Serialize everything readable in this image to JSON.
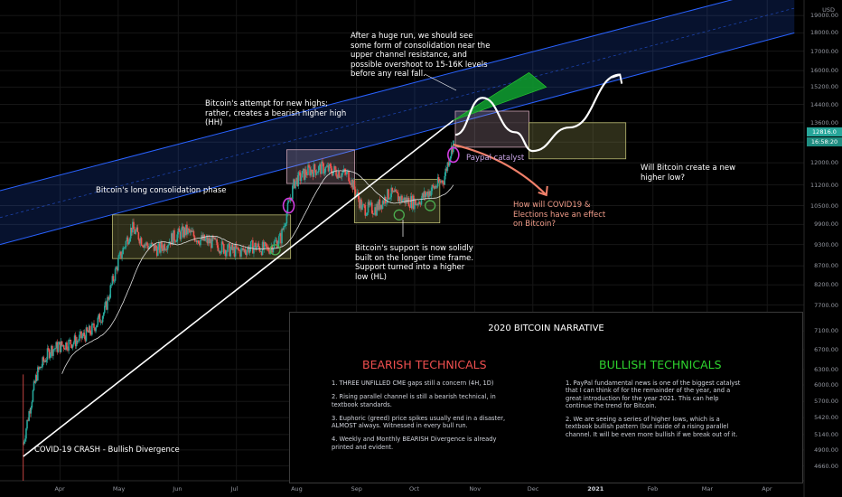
{
  "chart_data": {
    "type": "candlestick",
    "instrument": "Bitcoin",
    "currency": "USD",
    "x_ticks": [
      "Apr",
      "May",
      "Jun",
      "Jul",
      "Aug",
      "Sep",
      "Oct",
      "Nov",
      "Dec",
      "2021",
      "Feb",
      "Mar",
      "Apr"
    ],
    "y_ticks": [
      19000,
      18000,
      17000,
      16000,
      15200,
      14400,
      13600,
      12800,
      12000,
      11200,
      10500,
      9900,
      9300,
      8700,
      8200,
      7700,
      7100,
      6700,
      6300,
      6000,
      5700,
      5420,
      5140,
      4900,
      4660
    ],
    "ylim": [
      4450,
      19500
    ],
    "last_price": "12816.0",
    "countdown": "16:58:20",
    "price_path": [
      [
        "2020-03-13",
        5000
      ],
      [
        "2020-03-20",
        6200
      ],
      [
        "2020-03-27",
        6700
      ],
      [
        "2020-04-03",
        6800
      ],
      [
        "2020-04-10",
        6900
      ],
      [
        "2020-04-17",
        7100
      ],
      [
        "2020-04-24",
        7550
      ],
      [
        "2020-05-01",
        8800
      ],
      [
        "2020-05-08",
        9800
      ],
      [
        "2020-05-15",
        9300
      ],
      [
        "2020-05-22",
        9150
      ],
      [
        "2020-05-29",
        9500
      ],
      [
        "2020-06-05",
        9700
      ],
      [
        "2020-06-12",
        9450
      ],
      [
        "2020-06-19",
        9350
      ],
      [
        "2020-06-26",
        9150
      ],
      [
        "2020-07-03",
        9100
      ],
      [
        "2020-07-10",
        9250
      ],
      [
        "2020-07-17",
        9150
      ],
      [
        "2020-07-24",
        9500
      ],
      [
        "2020-07-31",
        11300
      ],
      [
        "2020-08-07",
        11700
      ],
      [
        "2020-08-14",
        11800
      ],
      [
        "2020-08-21",
        11700
      ],
      [
        "2020-08-28",
        11550
      ],
      [
        "2020-09-04",
        10400
      ],
      [
        "2020-09-11",
        10400
      ],
      [
        "2020-09-18",
        10900
      ],
      [
        "2020-09-25",
        10700
      ],
      [
        "2020-10-02",
        10600
      ],
      [
        "2020-10-09",
        11000
      ],
      [
        "2020-10-16",
        11400
      ],
      [
        "2020-10-21",
        12816
      ]
    ],
    "rising_channel": {
      "upper": [
        [
          "2020-03-01",
          11000
        ],
        [
          "2021-04-15",
          21000
        ]
      ],
      "lower": [
        [
          "2020-03-01",
          9300
        ],
        [
          "2021-04-15",
          18000
        ]
      ]
    },
    "support_trendline": [
      [
        "2020-03-13",
        4800
      ],
      [
        "2020-10-21",
        13700
      ]
    ],
    "consolidation_boxes": [
      {
        "from": "2020-04-28",
        "to": "2020-07-29",
        "low": 8900,
        "high": 10200
      },
      {
        "from": "2020-07-27",
        "to": "2020-08-31",
        "low": 11250,
        "high": 12500
      },
      {
        "from": "2020-08-31",
        "to": "2020-10-14",
        "low": 9950,
        "high": 11400
      },
      {
        "from": "2020-10-22",
        "to": "2020-11-29",
        "low": 12600,
        "high": 14100
      },
      {
        "from": "2020-11-29",
        "to": "2021-01-18",
        "low": 12150,
        "high": 13600
      }
    ],
    "projections": {
      "bullish": [
        [
          "2020-10-22",
          13100
        ],
        [
          "2020-11-05",
          14700
        ],
        [
          "2020-11-22",
          13200
        ],
        [
          "2020-12-01",
          12450
        ],
        [
          "2020-12-20",
          13400
        ],
        [
          "2021-01-15",
          15800
        ]
      ],
      "bearish": [
        [
          "2020-10-21",
          12700
        ],
        [
          "2020-11-19",
          11900
        ],
        [
          "2020-12-08",
          10850
        ]
      ]
    },
    "annotations": [
      "After a huge run, we should see some form of consolidation near the upper channel resistance, and possible overshoot to 15-16K levels before any real fall.",
      "Bitcoin's attempt for new highs; rather, creates a bearish higher high (HH)",
      "Bitcoin's long consolidation phase",
      "Bitcoin's support is now solidly built on the longer time frame. Support turned into a higher low (HL)",
      "Paypal catalyst",
      "Will Bitcoin create a new higher low?",
      "How will COVID19 & Elections have an effect on Bitcoin?",
      "COVID-19 CRASH - Bullish Divergence"
    ],
    "colors": {
      "channel": "#2962ff",
      "bullish": "#26a69a",
      "bearish": "#ef5350",
      "box": "#a2a25a",
      "circle": "#d03de0",
      "bull_path": "#ffffff",
      "bear_path": "#f0806a"
    }
  },
  "panel": {
    "title": "2020 BITCOIN NARRATIVE",
    "bearish_heading": "BEARISH TECHNICALS",
    "bullish_heading": "BULLISH TECHNICALS",
    "bearish_points": [
      "1. THREE UNFILLED CME gaps still a concern (4H, 1D)",
      "2. Rising parallel channel is still a bearish technical, in textbook standards.",
      "3. Euphoric (greed) price spikes usually end in a disaster, ALMOST always. Witnessed in every bull run.",
      "4. Weekly and Monthly BEARISH Divergence is already printed and evident."
    ],
    "bullish_points": [
      "1. PayPal fundamental news is one of the biggest catalyst that I can think of for the remainder of the year, and a great introduction for the year 2021. This can help continue the trend for Bitcoin.",
      "2. We are seeing a series of higher lows, which is a textbook bullish pattern (but inside of a rising parallel channel. It will be even more bullish if we break out of it."
    ]
  }
}
